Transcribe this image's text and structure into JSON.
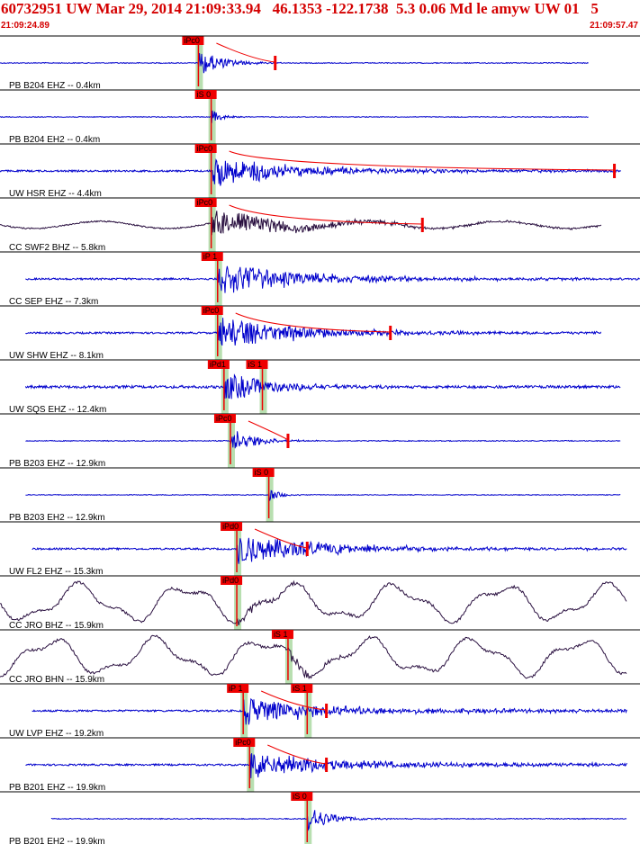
{
  "header": {
    "title": "60732951 UW Mar 29, 2014 21:09:33.94   46.1353 -122.1738  5.3 0.06 Md le amyw UW 01   5",
    "start_time": "21:09:24.89",
    "end_time": "21:09:57.47"
  },
  "colors": {
    "header_text": "#d40000",
    "trace_blue": "#0000cc",
    "trace_dark": "#2a1040",
    "pick_box": "#ee0000",
    "window_green": "#b8dfb0",
    "separator": "#000000"
  },
  "chart_data": {
    "type": "seismogram",
    "title": "60732951 UW Mar 29, 2014 21:09:33.94   46.1353 -122.1738  5.3 0.06 Md le amyw UW 01   5",
    "time_range": [
      "21:09:24.89",
      "21:09:57.47"
    ],
    "traces": [
      {
        "label": "PB B204 EHZ -- 0.4km",
        "color": "blue",
        "style": "impulsive",
        "picks": [
          {
            "phase": "iPc0",
            "t": 0.31
          }
        ],
        "coda_mark": 0.43,
        "t_start": 0.0,
        "t_end": 0.92
      },
      {
        "label": "PB B204 EH2 -- 0.4km",
        "color": "blue",
        "style": "quiet",
        "picks": [
          {
            "phase": "iS 0",
            "t": 0.33
          }
        ],
        "t_start": 0.0,
        "t_end": 0.92
      },
      {
        "label": "UW HSR EHZ -- 4.4km",
        "color": "blue",
        "style": "coda",
        "picks": [
          {
            "phase": "iPc0",
            "t": 0.33
          }
        ],
        "coda_mark": 0.96,
        "t_start": 0.0,
        "t_end": 0.97
      },
      {
        "label": "CC SWF2 BHZ -- 5.8km",
        "color": "dark",
        "style": "longcoda",
        "picks": [
          {
            "phase": "iPc0",
            "t": 0.33
          }
        ],
        "coda_mark": 0.66,
        "t_start": 0.0,
        "t_end": 0.94
      },
      {
        "label": "CC SEP EHZ -- 7.3km",
        "color": "blue",
        "style": "coda",
        "picks": [
          {
            "phase": "iP 1",
            "t": 0.34
          }
        ],
        "t_start": 0.04,
        "t_end": 1.0
      },
      {
        "label": "UW SHW EHZ -- 8.1km",
        "color": "blue",
        "style": "coda",
        "picks": [
          {
            "phase": "iPc0",
            "t": 0.34
          }
        ],
        "coda_mark": 0.61,
        "t_start": 0.04,
        "t_end": 0.94
      },
      {
        "label": "UW SQS EHZ -- 12.4km",
        "color": "blue",
        "style": "noisy",
        "picks": [
          {
            "phase": "iPd1",
            "t": 0.35
          },
          {
            "phase": "iS 1",
            "t": 0.41
          }
        ],
        "t_start": 0.04,
        "t_end": 0.97
      },
      {
        "label": "PB B203 EHZ -- 12.9km",
        "color": "blue",
        "style": "impulsive",
        "picks": [
          {
            "phase": "iPc0",
            "t": 0.36
          }
        ],
        "coda_mark": 0.45,
        "t_start": 0.04,
        "t_end": 0.97
      },
      {
        "label": "PB B203 EH2 -- 12.9km",
        "color": "blue",
        "style": "quiet",
        "picks": [
          {
            "phase": "iS 0",
            "t": 0.42
          }
        ],
        "t_start": 0.04,
        "t_end": 0.97
      },
      {
        "label": "UW FL2 EHZ -- 15.3km",
        "color": "blue",
        "style": "coda",
        "picks": [
          {
            "phase": "iPd0",
            "t": 0.37
          }
        ],
        "coda_mark": 0.48,
        "t_start": 0.05,
        "t_end": 0.98
      },
      {
        "label": "CC JRO BHZ -- 15.9km",
        "color": "dark",
        "style": "wave",
        "picks": [
          {
            "phase": "iPd0",
            "t": 0.37
          }
        ],
        "t_start": 0.0,
        "t_end": 0.98
      },
      {
        "label": "CC JRO BHN -- 15.9km",
        "color": "dark",
        "style": "wave2",
        "picks": [
          {
            "phase": "iS 1",
            "t": 0.45
          }
        ],
        "t_start": 0.0,
        "t_end": 0.98
      },
      {
        "label": "UW LVP EHZ -- 19.2km",
        "color": "blue",
        "style": "coda2",
        "picks": [
          {
            "phase": "iP 1",
            "t": 0.38
          },
          {
            "phase": "iS 1",
            "t": 0.48
          }
        ],
        "coda_mark": 0.51,
        "t_start": 0.05,
        "t_end": 0.98
      },
      {
        "label": "PB B201 EHZ -- 19.9km",
        "color": "blue",
        "style": "coda2",
        "picks": [
          {
            "phase": "iPc0",
            "t": 0.39
          }
        ],
        "coda_mark": 0.51,
        "t_start": 0.04,
        "t_end": 0.98
      },
      {
        "label": "PB B201 EH2 -- 19.9km",
        "color": "blue",
        "style": "impulsiveS",
        "picks": [
          {
            "phase": "iS 0",
            "t": 0.48
          }
        ],
        "t_start": 0.08,
        "t_end": 0.98
      }
    ]
  }
}
